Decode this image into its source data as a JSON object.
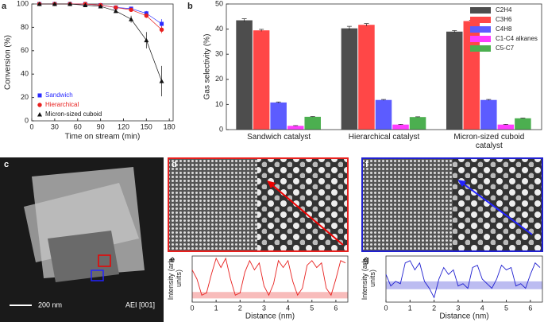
{
  "chart_data": [
    {
      "type": "line",
      "panel_label": "a",
      "xlabel": "Time on stream (min)",
      "ylabel": "Conversion (%)",
      "x": [
        10,
        30,
        50,
        70,
        90,
        110,
        130,
        150,
        170
      ],
      "xlim": [
        0,
        185
      ],
      "xticks": [
        0,
        30,
        60,
        90,
        120,
        150,
        180
      ],
      "ylim": [
        0,
        100
      ],
      "yticks": [
        0,
        20,
        40,
        60,
        80,
        100
      ],
      "legend": "lower left",
      "series": [
        {
          "name": "Sandwich",
          "color": "#2b2bff",
          "marker": "square",
          "values": [
            100,
            100,
            100,
            100,
            99,
            97,
            96,
            92,
            83
          ],
          "errors": [
            0.5,
            0.5,
            0.5,
            0.5,
            0.8,
            1,
            1.5,
            2,
            4
          ]
        },
        {
          "name": "Hierarchical",
          "color": "#e8201e",
          "marker": "circle",
          "values": [
            100,
            100,
            100,
            100,
            99,
            97,
            95,
            90,
            78
          ],
          "errors": [
            0.5,
            0.5,
            0.5,
            0.5,
            0.8,
            1,
            1.5,
            2,
            3
          ]
        },
        {
          "name": "Micron-sized cuboid",
          "color": "#111111",
          "marker": "triangle",
          "values": [
            100,
            100,
            100,
            99,
            98,
            94,
            87,
            69,
            34
          ],
          "errors": [
            0.5,
            0.5,
            0.5,
            0.5,
            1,
            1.5,
            3,
            7,
            13
          ]
        }
      ]
    },
    {
      "type": "bar",
      "panel_label": "b",
      "ylabel": "Gas selectivity (%)",
      "categories": [
        "Sandwich catalyst",
        "Hierarchical catalyst",
        "Micron-sized cuboid catalyst"
      ],
      "ylim": [
        0,
        50
      ],
      "yticks": [
        0,
        10,
        20,
        30,
        40,
        50
      ],
      "legend": "upper right",
      "series": [
        {
          "name": "C2H4",
          "color": "#4d4d4d",
          "values": [
            43.5,
            40.3,
            39
          ],
          "errors": [
            0.6,
            0.8,
            0.4
          ]
        },
        {
          "name": "C3H6",
          "color": "#ff4747",
          "values": [
            39.5,
            41.7,
            43.2
          ],
          "errors": [
            0.4,
            0.5,
            0.3
          ]
        },
        {
          "name": "C4H8",
          "color": "#5c5cff",
          "values": [
            10.8,
            11.8,
            11.8
          ],
          "errors": [
            0.2,
            0.2,
            0.2
          ]
        },
        {
          "name": "C1-C4 alkanes",
          "color": "#ff3cff",
          "values": [
            1.5,
            2,
            2
          ],
          "errors": [
            0.1,
            0.1,
            0.1
          ]
        },
        {
          "name": "C5-C7",
          "color": "#4caf50",
          "values": [
            5.1,
            5,
            4.5
          ],
          "errors": [
            0.1,
            0.1,
            0.1
          ]
        }
      ]
    },
    {
      "type": "line",
      "panel_label": "e",
      "xlabel": "Distance (nm)",
      "ylabel": "Intensity (arb. units)",
      "x": [
        0,
        0.2,
        0.4,
        0.6,
        0.8,
        1.0,
        1.2,
        1.4,
        1.6,
        1.8,
        2.0,
        2.2,
        2.4,
        2.6,
        2.8,
        3.0,
        3.2,
        3.4,
        3.6,
        3.8,
        4.0,
        4.2,
        4.4,
        4.6,
        4.8,
        5.0,
        5.2,
        5.4,
        5.6,
        5.8,
        6.0,
        6.2,
        6.4
      ],
      "xlim": [
        0,
        6.5
      ],
      "xticks": [
        0,
        1,
        2,
        3,
        4,
        5,
        6
      ],
      "ylim": [
        0,
        1
      ],
      "band": [
        0.08,
        0.22
      ],
      "series": [
        {
          "color": "#e8201e",
          "values": [
            0.7,
            0.5,
            0.15,
            0.2,
            0.6,
            0.95,
            0.75,
            0.95,
            0.5,
            0.15,
            0.2,
            0.65,
            0.9,
            0.7,
            0.85,
            0.35,
            0.15,
            0.4,
            0.9,
            0.75,
            0.9,
            0.45,
            0.15,
            0.3,
            0.8,
            0.9,
            0.75,
            0.85,
            0.3,
            0.15,
            0.5,
            0.9,
            0.85
          ]
        }
      ]
    },
    {
      "type": "line",
      "panel_label": "g",
      "xlabel": "Distance (nm)",
      "ylabel": "Intensity (arb. units)",
      "x": [
        0,
        0.2,
        0.4,
        0.6,
        0.8,
        1.0,
        1.2,
        1.4,
        1.6,
        1.8,
        2.0,
        2.2,
        2.4,
        2.6,
        2.8,
        3.0,
        3.2,
        3.4,
        3.6,
        3.8,
        4.0,
        4.2,
        4.4,
        4.6,
        4.8,
        5.0,
        5.2,
        5.4,
        5.6,
        5.8,
        6.0,
        6.2,
        6.4
      ],
      "xlim": [
        0,
        6.5
      ],
      "xticks": [
        0,
        1,
        2,
        3,
        4,
        5,
        6
      ],
      "ylim": [
        0,
        1
      ],
      "band": [
        0.28,
        0.45
      ],
      "series": [
        {
          "color": "#2020d0",
          "values": [
            0.6,
            0.35,
            0.45,
            0.4,
            0.85,
            0.9,
            0.7,
            0.85,
            0.45,
            0.3,
            0.1,
            0.5,
            0.75,
            0.6,
            0.7,
            0.35,
            0.4,
            0.3,
            0.75,
            0.8,
            0.5,
            0.4,
            0.3,
            0.5,
            0.8,
            0.7,
            0.75,
            0.35,
            0.4,
            0.3,
            0.6,
            0.85,
            0.75
          ]
        }
      ]
    }
  ],
  "images": {
    "c": {
      "label": "c",
      "scale_bar": "200 nm",
      "zone_axis": "AEI [001]"
    },
    "d": {
      "label": "d"
    },
    "f": {
      "label": "f"
    }
  }
}
